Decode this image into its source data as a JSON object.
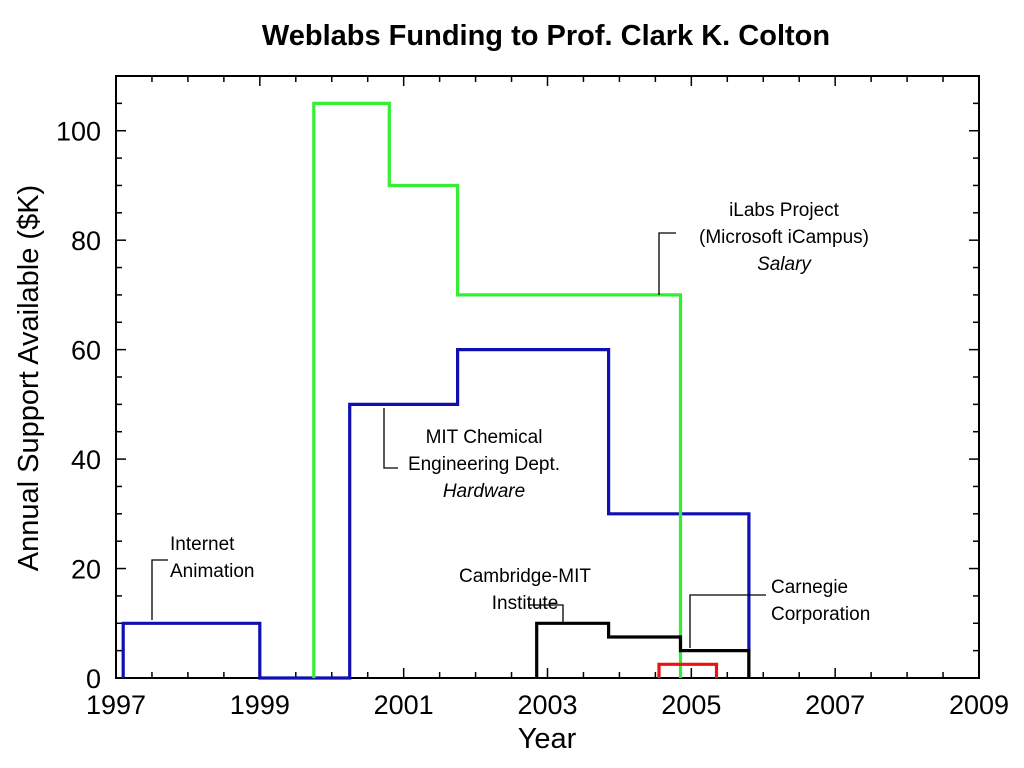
{
  "chart_data": {
    "type": "line",
    "title": "Weblabs Funding to Prof. Clark K. Colton",
    "xlabel": "Year",
    "ylabel": "Annual Support Available ($K)",
    "xlim": [
      1997,
      2009
    ],
    "ylim": [
      0,
      110
    ],
    "x_ticks": [
      1997,
      1999,
      2001,
      2003,
      2005,
      2007,
      2009
    ],
    "y_ticks": [
      0,
      20,
      40,
      60,
      80,
      100
    ],
    "grid": false,
    "series": [
      {
        "color": "#1010b0",
        "points": [
          [
            1997.1,
            0
          ],
          [
            1997.1,
            10
          ],
          [
            1999.0,
            10
          ],
          [
            1999.0,
            0
          ],
          [
            2000.25,
            0
          ],
          [
            2000.25,
            50
          ],
          [
            2001.75,
            50
          ],
          [
            2001.75,
            60
          ],
          [
            2003.85,
            60
          ],
          [
            2003.85,
            30
          ],
          [
            2005.8,
            30
          ],
          [
            2005.8,
            0
          ]
        ]
      },
      {
        "color": "#33ee33",
        "points": [
          [
            1999.75,
            0
          ],
          [
            1999.75,
            105
          ],
          [
            2000.8,
            105
          ],
          [
            2000.8,
            90
          ],
          [
            2001.75,
            90
          ],
          [
            2001.75,
            70
          ],
          [
            2004.85,
            70
          ],
          [
            2004.85,
            0
          ]
        ]
      },
      {
        "color": "#000000",
        "points": [
          [
            2002.85,
            0
          ],
          [
            2002.85,
            10
          ],
          [
            2003.85,
            10
          ],
          [
            2003.85,
            7.5
          ],
          [
            2004.85,
            7.5
          ],
          [
            2004.85,
            5
          ],
          [
            2005.8,
            5
          ],
          [
            2005.8,
            0
          ]
        ]
      },
      {
        "color": "#ee1111",
        "points": [
          [
            2004.55,
            0
          ],
          [
            2004.55,
            2.5
          ],
          [
            2005.35,
            2.5
          ],
          [
            2005.35,
            0
          ]
        ]
      }
    ],
    "annotations": [
      {
        "lines": [
          "Internet",
          "Animation"
        ],
        "italic_line": null
      },
      {
        "lines": [
          "MIT Chemical",
          "Engineering Dept.",
          "Hardware"
        ],
        "italic_line": 2
      },
      {
        "lines": [
          "iLabs Project",
          "(Microsoft iCampus)",
          "Salary"
        ],
        "italic_line": 2
      },
      {
        "lines": [
          "Cambridge-MIT",
          "Institute"
        ],
        "italic_line": null
      },
      {
        "lines": [
          "Carnegie",
          "Corporation"
        ],
        "italic_line": null
      }
    ]
  }
}
